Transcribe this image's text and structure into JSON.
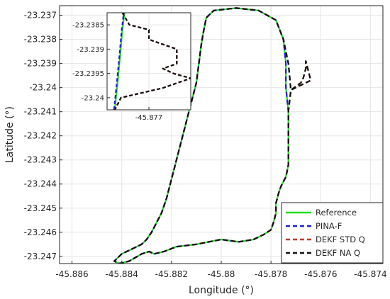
{
  "chart_data": [
    {
      "type": "line",
      "title": "",
      "xlabel": "Longitude (°)",
      "ylabel": "Latitude (°)",
      "xlim": [
        -45.8865,
        -45.8735
      ],
      "ylim": [
        -23.2473,
        -23.2366
      ],
      "xticks": [
        -45.886,
        -45.884,
        -45.882,
        -45.88,
        -45.878,
        -45.876,
        -45.874
      ],
      "xtick_labels": [
        "-45.886",
        "-45.884",
        "-45.882",
        "-45.88",
        "-45.878",
        "-45.876",
        "-45.874"
      ],
      "yticks": [
        -23.237,
        -23.238,
        -23.239,
        -23.24,
        -23.241,
        -23.242,
        -23.243,
        -23.244,
        -23.245,
        -23.246,
        -23.247
      ],
      "ytick_labels": [
        "-23.237",
        "-23.238",
        "-23.239",
        "-23.24",
        "-23.241",
        "-23.242",
        "-23.243",
        "-23.244",
        "-23.245",
        "-23.246",
        "-23.247"
      ],
      "grid": true,
      "legend_position": "bottom-right",
      "series": [
        {
          "name": "Reference",
          "color": "#22dd22",
          "style": "solid",
          "x": [
            -45.8787,
            -45.8783,
            -45.878,
            -45.8779,
            -45.8778,
            -45.8778,
            -45.8777,
            -45.8776,
            -45.8774,
            -45.8773,
            -45.8773,
            -45.8773,
            -45.8773,
            -45.8774,
            -45.8774,
            -45.8775,
            -45.8778,
            -45.8785,
            -45.8794,
            -45.8803,
            -45.8806,
            -45.8807,
            -45.8808,
            -45.8809,
            -45.881,
            -45.8812,
            -45.8814,
            -45.8816,
            -45.8818,
            -45.882,
            -45.8822,
            -45.8824,
            -45.8826,
            -45.8828,
            -45.883,
            -45.8832,
            -45.8834,
            -45.8836,
            -45.8838,
            -45.884,
            -45.8842,
            -45.8843,
            -45.8841,
            -45.8837,
            -45.8832,
            -45.8829,
            -45.8827,
            -45.8823,
            -45.8818,
            -45.881,
            -45.88,
            -45.8793,
            -45.8787
          ],
          "y": [
            -23.2463,
            -23.2461,
            -23.2459,
            -23.2456,
            -23.2452,
            -23.2448,
            -23.2444,
            -23.2441,
            -23.2437,
            -23.2432,
            -23.2427,
            -23.2419,
            -23.241,
            -23.24,
            -23.239,
            -23.238,
            -23.2372,
            -23.2368,
            -23.2367,
            -23.2368,
            -23.2371,
            -23.2376,
            -23.2382,
            -23.239,
            -23.2398,
            -23.2406,
            -23.2414,
            -23.2422,
            -23.243,
            -23.2438,
            -23.2446,
            -23.2452,
            -23.2456,
            -23.246,
            -23.2463,
            -23.2465,
            -23.2466,
            -23.2467,
            -23.2468,
            -23.2469,
            -23.2471,
            -23.2472,
            -23.2473,
            -23.2472,
            -23.2469,
            -23.2468,
            -23.2469,
            -23.2468,
            -23.2466,
            -23.2465,
            -23.2463,
            -23.2464,
            -23.2463
          ]
        },
        {
          "name": "PINA-F",
          "color": "#1f1fd6",
          "style": "dashed",
          "x": [
            -45.8787,
            -45.8783,
            -45.878,
            -45.8779,
            -45.8778,
            -45.8778,
            -45.8777,
            -45.8776,
            -45.8774,
            -45.8773,
            -45.8773,
            -45.8773,
            -45.8773,
            -45.8774,
            -45.8774,
            -45.8775,
            -45.8778,
            -45.8785,
            -45.8794,
            -45.8803,
            -45.8806,
            -45.8807,
            -45.8808,
            -45.8809,
            -45.881,
            -45.8812,
            -45.8814,
            -45.8816,
            -45.8818,
            -45.882,
            -45.8822,
            -45.8824,
            -45.8826,
            -45.8828,
            -45.883,
            -45.8832,
            -45.8834,
            -45.8836,
            -45.8838,
            -45.884,
            -45.8842,
            -45.8843,
            -45.8841,
            -45.8837,
            -45.8832,
            -45.8829,
            -45.8827,
            -45.8823,
            -45.8818,
            -45.881,
            -45.88,
            -45.8793,
            -45.8787
          ],
          "y": [
            -23.2463,
            -23.2461,
            -23.2459,
            -23.2456,
            -23.2452,
            -23.2448,
            -23.2444,
            -23.2441,
            -23.2437,
            -23.2432,
            -23.2427,
            -23.2419,
            -23.241,
            -23.24,
            -23.239,
            -23.238,
            -23.2372,
            -23.2368,
            -23.2367,
            -23.2368,
            -23.2371,
            -23.2376,
            -23.2382,
            -23.239,
            -23.2398,
            -23.2406,
            -23.2414,
            -23.2422,
            -23.243,
            -23.2438,
            -23.2446,
            -23.2452,
            -23.2456,
            -23.246,
            -23.2463,
            -23.2465,
            -23.2466,
            -23.2467,
            -23.2468,
            -23.2469,
            -23.2471,
            -23.2472,
            -23.2473,
            -23.2472,
            -23.2469,
            -23.2468,
            -23.2469,
            -23.2468,
            -23.2466,
            -23.2465,
            -23.2463,
            -23.2464,
            -23.2463
          ]
        },
        {
          "name": "DEKF STD Q",
          "color": "#c0392b",
          "style": "dashed",
          "x": [
            -45.8787,
            -45.8783,
            -45.878,
            -45.8779,
            -45.8778,
            -45.8778,
            -45.8777,
            -45.8776,
            -45.8774,
            -45.8773,
            -45.8773,
            -45.8773,
            -45.8773,
            -45.8772,
            -45.8768,
            -45.8767,
            -45.8766,
            -45.8766,
            -45.8764,
            -45.8768,
            -45.8772,
            -45.8773,
            -45.8775,
            -45.8778,
            -45.8785,
            -45.8794,
            -45.8803,
            -45.8806,
            -45.8807,
            -45.8808,
            -45.8809,
            -45.881,
            -45.8812,
            -45.8814,
            -45.8816,
            -45.8818,
            -45.882,
            -45.8822,
            -45.8824,
            -45.8826,
            -45.8828,
            -45.883,
            -45.8832,
            -45.8834,
            -45.8836,
            -45.8838,
            -45.884,
            -45.8842,
            -45.8843,
            -45.8841,
            -45.8837,
            -45.8832,
            -45.8829,
            -45.8827,
            -45.8823,
            -45.8818,
            -45.881,
            -45.88,
            -45.8793,
            -45.8787
          ],
          "y": [
            -23.2463,
            -23.2461,
            -23.2459,
            -23.2456,
            -23.2452,
            -23.2448,
            -23.2444,
            -23.2441,
            -23.2437,
            -23.2432,
            -23.2427,
            -23.2419,
            -23.241,
            -23.2401,
            -23.2398,
            -23.2396,
            -23.2392,
            -23.2389,
            -23.2397,
            -23.2399,
            -23.2401,
            -23.239,
            -23.238,
            -23.2372,
            -23.2368,
            -23.2367,
            -23.2368,
            -23.2371,
            -23.2376,
            -23.2382,
            -23.239,
            -23.2398,
            -23.2406,
            -23.2414,
            -23.2422,
            -23.243,
            -23.2438,
            -23.2446,
            -23.2452,
            -23.2456,
            -23.246,
            -23.2463,
            -23.2465,
            -23.2466,
            -23.2467,
            -23.2468,
            -23.2469,
            -23.2471,
            -23.2472,
            -23.2473,
            -23.2472,
            -23.2469,
            -23.2468,
            -23.2469,
            -23.2468,
            -23.2466,
            -23.2465,
            -23.2463,
            -23.2464,
            -23.2463
          ]
        },
        {
          "name": "DEKF NA Q",
          "color": "#111111",
          "style": "dashed",
          "x": [
            -45.8787,
            -45.8783,
            -45.878,
            -45.8779,
            -45.8778,
            -45.8778,
            -45.8777,
            -45.8776,
            -45.8774,
            -45.8773,
            -45.8773,
            -45.8773,
            -45.8773,
            -45.8772,
            -45.8768,
            -45.8767,
            -45.8766,
            -45.8766,
            -45.8764,
            -45.8768,
            -45.8772,
            -45.8773,
            -45.8775,
            -45.8778,
            -45.8785,
            -45.8794,
            -45.8803,
            -45.8806,
            -45.8807,
            -45.8808,
            -45.8809,
            -45.881,
            -45.8812,
            -45.8814,
            -45.8816,
            -45.8818,
            -45.882,
            -45.8822,
            -45.8824,
            -45.8826,
            -45.8828,
            -45.883,
            -45.8832,
            -45.8834,
            -45.8836,
            -45.8838,
            -45.884,
            -45.8842,
            -45.8843,
            -45.8841,
            -45.8837,
            -45.8832,
            -45.8829,
            -45.8827,
            -45.8823,
            -45.8818,
            -45.881,
            -45.88,
            -45.8793,
            -45.8787
          ],
          "y": [
            -23.2463,
            -23.2461,
            -23.2459,
            -23.2456,
            -23.2452,
            -23.2448,
            -23.2444,
            -23.2441,
            -23.2437,
            -23.2432,
            -23.2427,
            -23.2419,
            -23.241,
            -23.2401,
            -23.2398,
            -23.2396,
            -23.2392,
            -23.2389,
            -23.2397,
            -23.2399,
            -23.2401,
            -23.239,
            -23.238,
            -23.2372,
            -23.2368,
            -23.2367,
            -23.2368,
            -23.2371,
            -23.2376,
            -23.2382,
            -23.239,
            -23.2398,
            -23.2406,
            -23.2414,
            -23.2422,
            -23.243,
            -23.2438,
            -23.2446,
            -23.2452,
            -23.2456,
            -23.246,
            -23.2463,
            -23.2465,
            -23.2466,
            -23.2467,
            -23.2468,
            -23.2469,
            -23.2471,
            -23.2472,
            -23.2473,
            -23.2472,
            -23.2469,
            -23.2468,
            -23.2469,
            -23.2468,
            -23.2466,
            -23.2465,
            -23.2463,
            -23.2464,
            -23.2463
          ]
        }
      ]
    },
    {
      "type": "line",
      "title": "",
      "xlabel": "",
      "ylabel": "",
      "xlim": [
        -45.8776,
        -45.8764
      ],
      "ylim": [
        -23.24025,
        -23.23825
      ],
      "xticks": [
        -45.877
      ],
      "xtick_labels": [
        "-45.877"
      ],
      "yticks": [
        -23.2385,
        -23.239,
        -23.2395,
        -23.24
      ],
      "ytick_labels": [
        "-23.2385",
        "-23.239",
        "-23.2395",
        "-23.24"
      ],
      "grid": true,
      "series": [
        {
          "name": "Reference",
          "color": "#22dd22",
          "style": "solid",
          "x": [
            -45.87749,
            -45.87745,
            -45.87741,
            -45.87738,
            -45.87735
          ],
          "y": [
            -23.24025,
            -23.2397,
            -23.2391,
            -23.2386,
            -23.23825
          ]
        },
        {
          "name": "PINA-F",
          "color": "#1f1fd6",
          "style": "dashed",
          "x": [
            -45.8775,
            -45.87746,
            -45.87742,
            -45.87739,
            -45.87736
          ],
          "y": [
            -23.24025,
            -23.2397,
            -23.2391,
            -23.2386,
            -23.23825
          ]
        },
        {
          "name": "DEKF STD Q",
          "color": "#c0392b",
          "style": "dashed",
          "x": [
            -45.87738,
            -45.87728,
            -45.877,
            -45.877,
            -45.8766,
            -45.8766,
            -45.8768,
            -45.87665,
            -45.8764,
            -45.8768,
            -45.8771,
            -45.8774,
            -45.87749
          ],
          "y": [
            -23.23825,
            -23.2385,
            -23.2386,
            -23.2388,
            -23.239,
            -23.2393,
            -23.2394,
            -23.2395,
            -23.2396,
            -23.2398,
            -23.2399,
            -23.24,
            -23.24025
          ]
        },
        {
          "name": "DEKF NA Q",
          "color": "#111111",
          "style": "dashed",
          "x": [
            -45.87738,
            -45.87728,
            -45.877,
            -45.877,
            -45.8766,
            -45.8766,
            -45.8768,
            -45.87665,
            -45.8764,
            -45.8768,
            -45.8771,
            -45.8774,
            -45.87749
          ],
          "y": [
            -23.23825,
            -23.2385,
            -23.2386,
            -23.2388,
            -23.239,
            -23.2393,
            -23.2394,
            -23.2395,
            -23.2396,
            -23.2398,
            -23.2399,
            -23.24,
            -23.24025
          ]
        }
      ]
    }
  ]
}
